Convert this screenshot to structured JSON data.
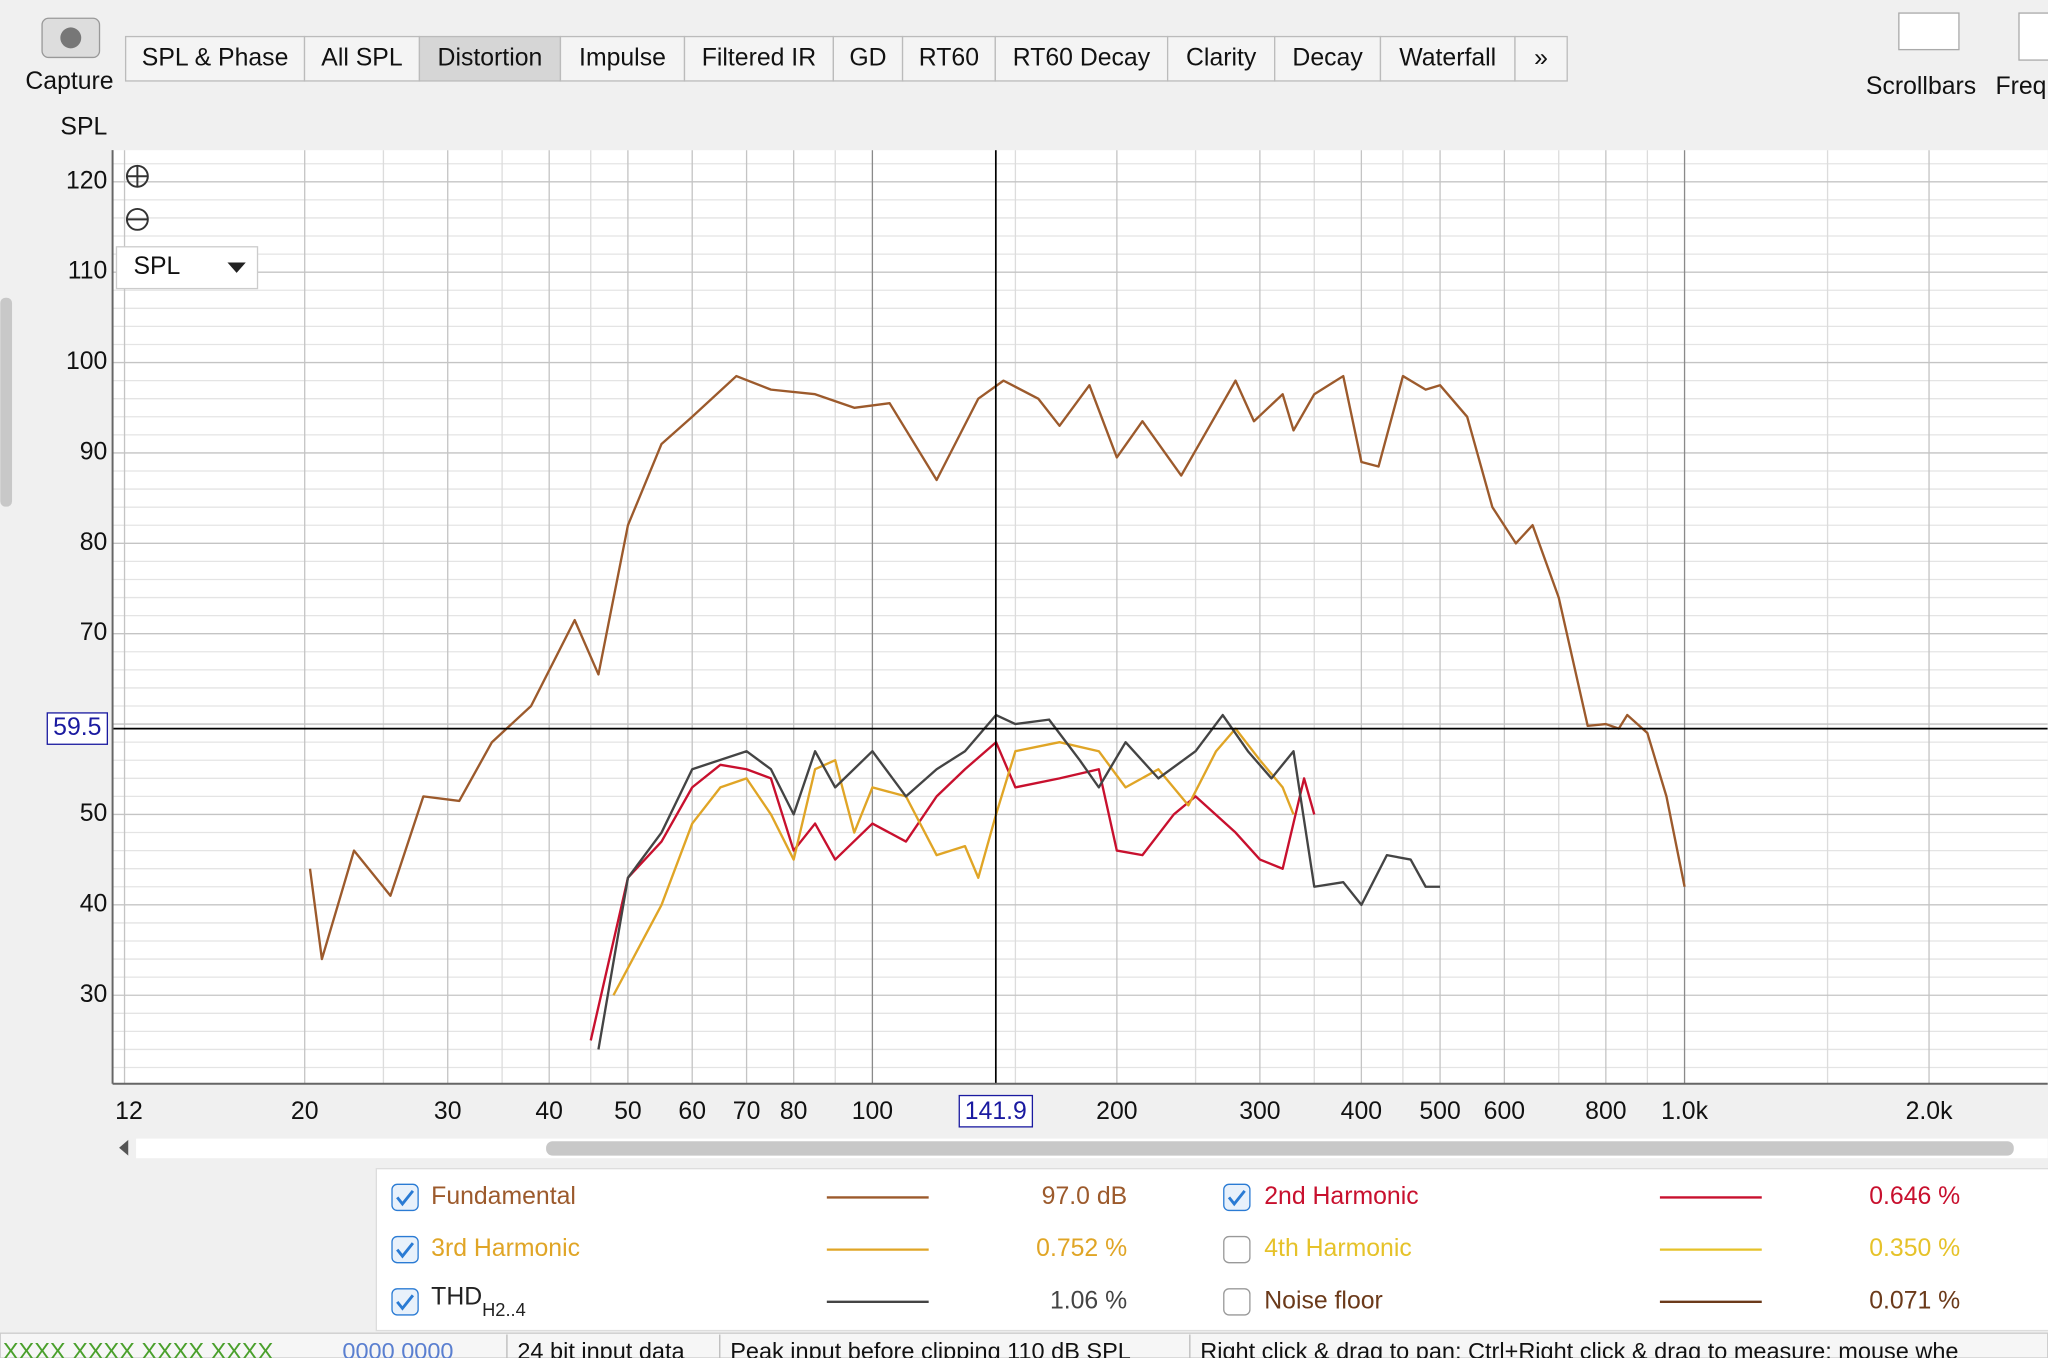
{
  "toolbar": {
    "capture": "Capture",
    "tabs": [
      "SPL & Phase",
      "All SPL",
      "Distortion",
      "Impulse",
      "Filtered IR",
      "GD",
      "RT60",
      "RT60 Decay",
      "Clarity",
      "Decay",
      "Waterfall",
      "»"
    ],
    "active_tab": 2,
    "scrollbars": "Scrollbars",
    "freq": "Freq"
  },
  "chart_data": {
    "type": "line",
    "y_axis_label": "SPL",
    "dropdown": "SPL",
    "log_x": true,
    "xlim": [
      11.6,
      2800
    ],
    "ylim": [
      20.2,
      123.5
    ],
    "xticks": [
      12,
      20,
      30,
      40,
      50,
      60,
      70,
      80,
      100,
      200,
      300,
      400,
      500,
      600,
      800,
      {
        "value": 1000,
        "label": "1.0k"
      },
      {
        "value": 2000,
        "label": "2.0k"
      }
    ],
    "minor_xticks": [
      25,
      35,
      45,
      90,
      150,
      250,
      350,
      450,
      700,
      900,
      1500
    ],
    "yticks": [
      30,
      40,
      50,
      60,
      70,
      80,
      90,
      100,
      110,
      120
    ],
    "y_minor_ticks": [
      22,
      24,
      26,
      28,
      32,
      34,
      36,
      38,
      42,
      44,
      46,
      48,
      52,
      54,
      56,
      58,
      62,
      64,
      66,
      68,
      72,
      74,
      76,
      78,
      82,
      84,
      86,
      88,
      92,
      94,
      96,
      98,
      102,
      104,
      106,
      108,
      112,
      114,
      116,
      118,
      122
    ],
    "yticks_labeled": [
      30,
      40,
      50,
      70,
      80,
      90,
      100,
      110,
      120
    ],
    "grid": true,
    "cursor": {
      "x": 141.9,
      "y": 59.5
    },
    "series": [
      {
        "name": "Fundamental",
        "color": "#9c5a2c",
        "checked": true,
        "legend_value": "97.0 dB",
        "x": [
          20.3,
          21,
          23,
          25.5,
          28,
          31,
          34,
          38,
          43,
          46,
          50,
          55,
          60,
          68,
          75,
          85,
          95,
          105,
          120,
          135,
          145,
          160,
          170,
          185,
          200,
          215,
          240,
          280,
          295,
          320,
          330,
          350,
          380,
          400,
          420,
          450,
          480,
          500,
          540,
          580,
          620,
          650,
          700,
          760,
          800,
          830,
          850,
          900,
          950,
          1000
        ],
        "values": [
          44,
          34,
          46,
          41,
          52,
          51.5,
          58,
          62,
          71.5,
          65.5,
          82,
          91,
          94,
          98.5,
          97,
          96.5,
          95,
          95.5,
          87,
          96,
          98,
          96,
          93,
          97.5,
          89.5,
          93.5,
          87.5,
          98,
          93.5,
          96.5,
          92.5,
          96.5,
          98.5,
          89,
          88.5,
          98.5,
          97,
          97.5,
          94,
          84,
          80,
          82,
          74,
          59.8,
          60,
          59.5,
          61,
          59,
          52,
          42
        ]
      },
      {
        "name": "2nd Harmonic",
        "color": "#c8102e",
        "checked": true,
        "legend_value": "0.646 %",
        "x": [
          45,
          50,
          55,
          60,
          65,
          70,
          75,
          80,
          85,
          90,
          100,
          110,
          120,
          130,
          142,
          150,
          170,
          190,
          200,
          215,
          235,
          250,
          280,
          300,
          320,
          340,
          350
        ],
        "values": [
          25,
          43,
          47,
          53,
          55.5,
          55,
          54,
          46,
          49,
          45,
          49,
          47,
          52,
          55,
          58,
          53,
          54,
          55,
          46,
          45.5,
          50,
          52,
          48,
          45,
          44,
          54,
          50
        ]
      },
      {
        "name": "3rd Harmonic",
        "color": "#e0a526",
        "checked": true,
        "legend_value": "0.752 %",
        "x": [
          48,
          55,
          60,
          65,
          70,
          75,
          80,
          85,
          90,
          95,
          100,
          110,
          120,
          130,
          135,
          142,
          150,
          170,
          190,
          205,
          225,
          245,
          265,
          280,
          300,
          320,
          330
        ],
        "values": [
          30,
          40,
          49,
          53,
          54,
          50,
          45,
          55,
          56,
          48,
          53,
          52,
          45.5,
          46.5,
          43,
          50,
          57,
          58,
          57,
          53,
          55,
          51,
          57,
          59.5,
          56,
          53,
          50
        ]
      },
      {
        "name": "4th Harmonic",
        "color": "#e6c229",
        "checked": false,
        "legend_value": "0.350 %",
        "x": [],
        "values": []
      },
      {
        "name": "THD",
        "name_subscript": "H2..4",
        "color": "#444444",
        "checked": true,
        "legend_value": "1.06 %",
        "x": [
          46,
          50,
          55,
          60,
          70,
          75,
          80,
          85,
          90,
          100,
          110,
          120,
          130,
          142,
          150,
          165,
          180,
          190,
          205,
          225,
          250,
          270,
          290,
          310,
          330,
          350,
          380,
          400,
          430,
          460,
          480,
          500
        ],
        "values": [
          24,
          43,
          48,
          55,
          57,
          55,
          50,
          57,
          53,
          57,
          52,
          55,
          57,
          61,
          60,
          60.5,
          56,
          53,
          58,
          54,
          57,
          61,
          57,
          54,
          57,
          42,
          42.5,
          40,
          45.5,
          45,
          42,
          42
        ]
      },
      {
        "name": "Noise floor",
        "color": "#6b3a1a",
        "checked": false,
        "legend_value": "0.071 %",
        "x": [],
        "values": []
      }
    ]
  },
  "status_bar": [
    "XXXX XXXX  XXXX XXXX",
    "0000 0000",
    "24 bit input data",
    "Peak input before clipping 110 dB SPL",
    "Right click & drag to pan; Ctrl+Right click & drag to measure; mouse whe"
  ]
}
